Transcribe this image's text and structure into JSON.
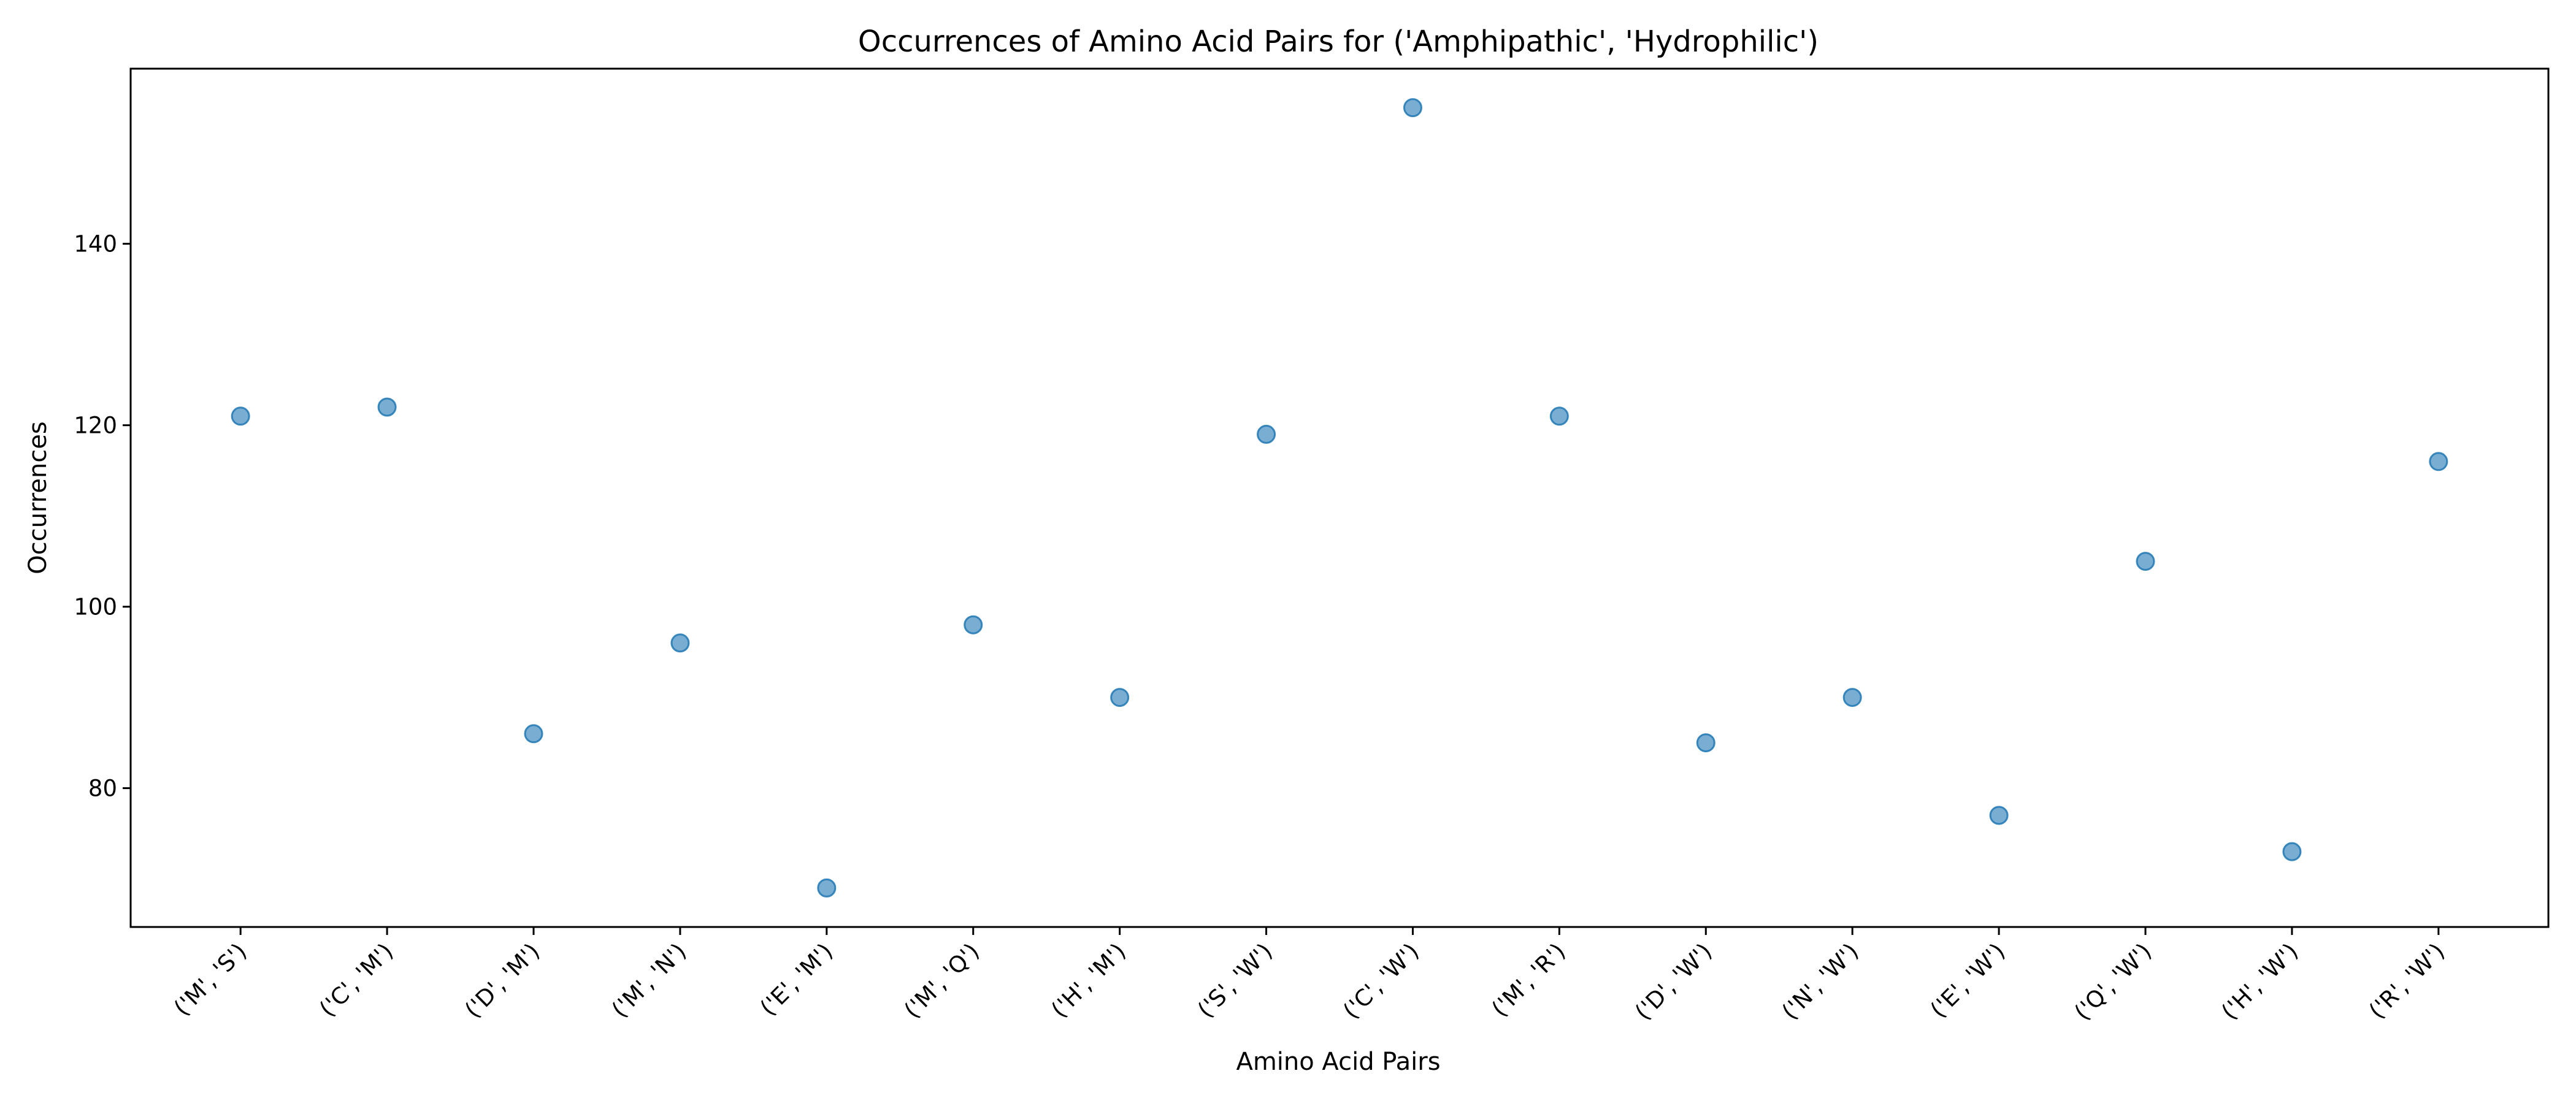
{
  "chart_data": {
    "type": "scatter",
    "title": "Occurrences of Amino Acid Pairs for ('Amphipathic', 'Hydrophilic')",
    "xlabel": "Amino Acid Pairs",
    "ylabel": "Occurrences",
    "categories": [
      "('M', 'S')",
      "('C', 'M')",
      "('D', 'M')",
      "('M', 'N')",
      "('E', 'M')",
      "('M', 'Q')",
      "('H', 'M')",
      "('S', 'W')",
      "('C', 'W')",
      "('M', 'R')",
      "('D', 'W')",
      "('N', 'W')",
      "('E', 'W')",
      "('Q', 'W')",
      "('H', 'W')",
      "('R', 'W')"
    ],
    "values": [
      121,
      122,
      86,
      96,
      69,
      98,
      90,
      119,
      155,
      121,
      85,
      90,
      77,
      105,
      73,
      116
    ],
    "ylim": [
      64.7,
      159.3
    ],
    "yticks": [
      80,
      100,
      120,
      140
    ],
    "grid": false,
    "legend": "none",
    "marker_color": "#1f77b4",
    "marker_alpha": 0.6
  }
}
